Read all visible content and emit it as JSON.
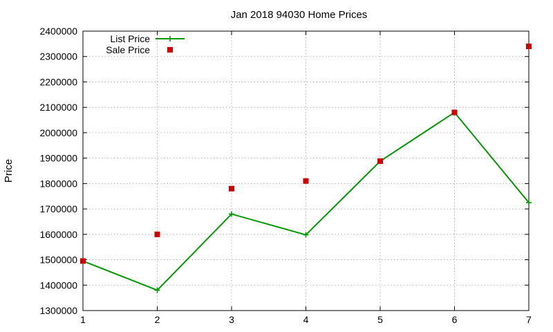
{
  "chart_data": {
    "type": "line",
    "title": "Jan 2018 94030 Home Prices",
    "xlabel": "",
    "ylabel": "Price",
    "x": [
      1,
      2,
      3,
      4,
      5,
      6,
      7
    ],
    "xlim": [
      1,
      7
    ],
    "ylim": [
      1300000,
      2400000
    ],
    "x_ticks": [
      "1",
      "2",
      "3",
      "4",
      "5",
      "6",
      "7"
    ],
    "y_ticks": [
      "1300000",
      "1400000",
      "1500000",
      "1600000",
      "1700000",
      "1800000",
      "1900000",
      "2000000",
      "2100000",
      "2200000",
      "2300000",
      "2400000"
    ],
    "grid": true,
    "legend_position": "top-left",
    "series": [
      {
        "name": "List Price",
        "style": "line-with-plus-markers",
        "color": "#009900",
        "values": [
          1495000,
          1380000,
          1680000,
          1598000,
          1888000,
          2080000,
          1725000
        ]
      },
      {
        "name": "Sale Price",
        "style": "square-markers",
        "color": "#cc0000",
        "values": [
          1495000,
          1600000,
          1780000,
          1810000,
          1888000,
          2080000,
          2340000
        ]
      }
    ]
  }
}
